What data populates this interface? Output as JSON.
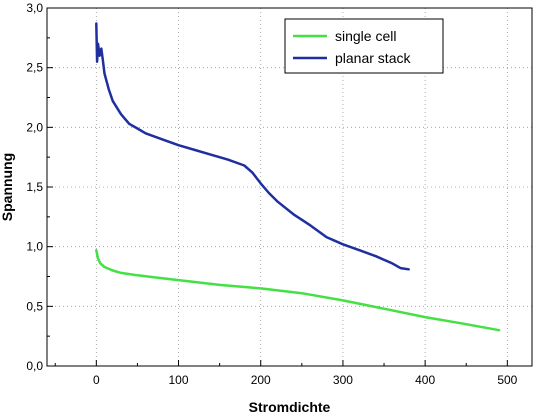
{
  "chart_data": {
    "type": "line",
    "xlabel": "Stromdichte",
    "ylabel": "Spannung",
    "xlim": [
      -60,
      530
    ],
    "ylim": [
      0,
      3
    ],
    "x_ticks": [
      0,
      100,
      200,
      300,
      400,
      500
    ],
    "y_ticks": [
      0,
      0.5,
      1.0,
      1.5,
      2.0,
      2.5,
      3.0
    ],
    "x_tick_labels": [
      "0",
      "100",
      "200",
      "300",
      "400",
      "500"
    ],
    "y_tick_labels": [
      "0,0",
      "0,5",
      "1,0",
      "1,5",
      "2,0",
      "2,5",
      "3,0"
    ],
    "grid": true,
    "legend_position": "top-right",
    "series": [
      {
        "name": "single cell",
        "color": "#44e044",
        "x": [
          0,
          2,
          5,
          10,
          20,
          30,
          50,
          75,
          100,
          150,
          200,
          250,
          300,
          350,
          400,
          450,
          490
        ],
        "y": [
          0.97,
          0.9,
          0.86,
          0.83,
          0.8,
          0.78,
          0.76,
          0.74,
          0.72,
          0.68,
          0.65,
          0.61,
          0.55,
          0.48,
          0.41,
          0.35,
          0.3
        ]
      },
      {
        "name": "planar stack",
        "color": "#1f2fa0",
        "x": [
          0,
          1,
          2,
          4,
          6,
          8,
          10,
          15,
          20,
          30,
          40,
          50,
          60,
          80,
          100,
          120,
          140,
          160,
          180,
          190,
          200,
          210,
          220,
          240,
          260,
          280,
          300,
          320,
          340,
          360,
          370,
          380
        ],
        "y": [
          2.87,
          2.55,
          2.7,
          2.6,
          2.66,
          2.56,
          2.45,
          2.32,
          2.22,
          2.11,
          2.03,
          1.99,
          1.95,
          1.9,
          1.85,
          1.81,
          1.77,
          1.73,
          1.68,
          1.62,
          1.53,
          1.45,
          1.38,
          1.27,
          1.18,
          1.08,
          1.02,
          0.97,
          0.92,
          0.86,
          0.82,
          0.81
        ]
      }
    ]
  }
}
